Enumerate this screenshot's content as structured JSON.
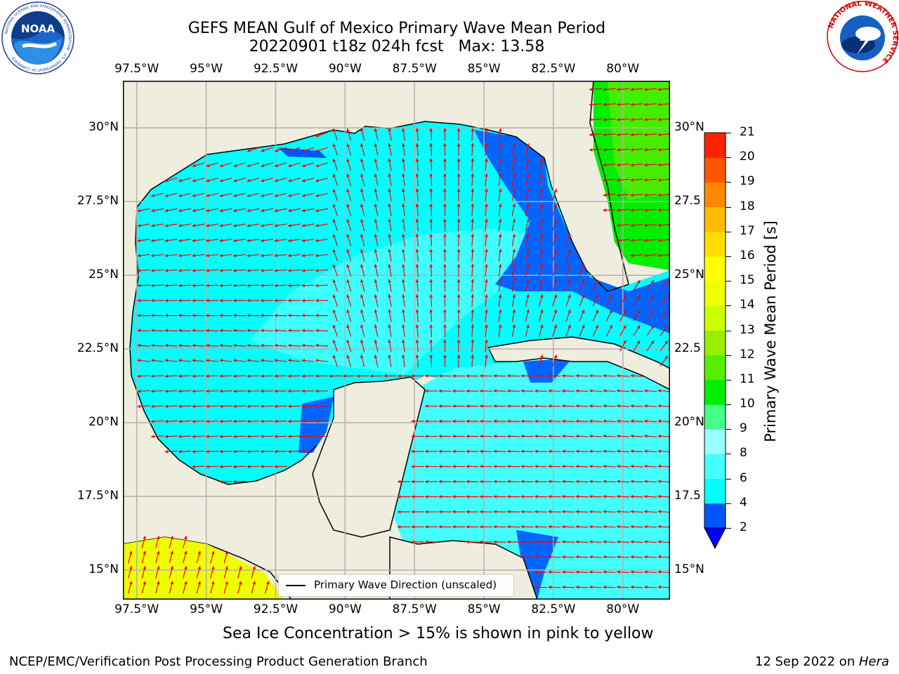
{
  "title": {
    "line1": "GEFS MEAN Gulf of Mexico Primary Wave Mean Period",
    "line2": "20220901 t18z 024h fcst   Max: 13.58"
  },
  "logos": {
    "left": "noaa-logo",
    "left_text": "NOAA",
    "left_ring_text": "NATIONAL OCEANIC AND ATMOSPHERIC ADMINISTRATION · U.S. DEPARTMENT OF COMMERCE",
    "right": "national-weather-service-logo",
    "right_ring_text": "NATIONAL WEATHER SERVICE"
  },
  "map": {
    "lon_labels": [
      "97.5°W",
      "95°W",
      "92.5°W",
      "90°W",
      "87.5°W",
      "85°W",
      "82.5°W",
      "80°W"
    ],
    "lon_values": [
      -97.5,
      -95,
      -92.5,
      -90,
      -87.5,
      -85,
      -82.5,
      -80
    ],
    "lat_labels_left": [
      "30°N",
      "27.5°N",
      "25°N",
      "22.5°N",
      "20°N",
      "17.5°N",
      "15°N"
    ],
    "lat_labels_right": [
      "30°N",
      "27.5",
      "25°N",
      "22.5",
      "20°N",
      "17.5",
      "15°N"
    ],
    "lat_values": [
      30,
      27.5,
      25,
      22.5,
      20,
      17.5,
      15
    ],
    "extent": {
      "lon_min": -98,
      "lon_max": -78.3,
      "lat_min": 14,
      "lat_max": 31.6
    },
    "land_color": "#efedde",
    "grid": true,
    "legend_label": "Primary Wave Direction (unscaled)",
    "arrow_color": "#ff0000"
  },
  "colorbar": {
    "label": "Primary Wave Mean Period [s]",
    "ticks": [
      "2",
      "4",
      "6",
      "8",
      "9",
      "10",
      "11",
      "12",
      "13",
      "14",
      "15",
      "16",
      "17",
      "18",
      "19",
      "20",
      "21"
    ],
    "colors": [
      "#0055ff",
      "#00ffff",
      "#44ffff",
      "#99ffff",
      "#44ff88",
      "#00ee00",
      "#55ee00",
      "#99ee00",
      "#ccff00",
      "#eeff00",
      "#ffff00",
      "#ffdd00",
      "#ffbb00",
      "#ff8800",
      "#ff5500",
      "#ff2200"
    ],
    "extend_color": "#0000ff"
  },
  "note": "Sea Ice Concentration > 15% is shown in pink to yellow",
  "footer": {
    "left": "NCEP/EMC/Verification Post Processing Product Generation Branch",
    "right_prefix": "12 Sep 2022 on ",
    "right_italic": "Hera"
  }
}
